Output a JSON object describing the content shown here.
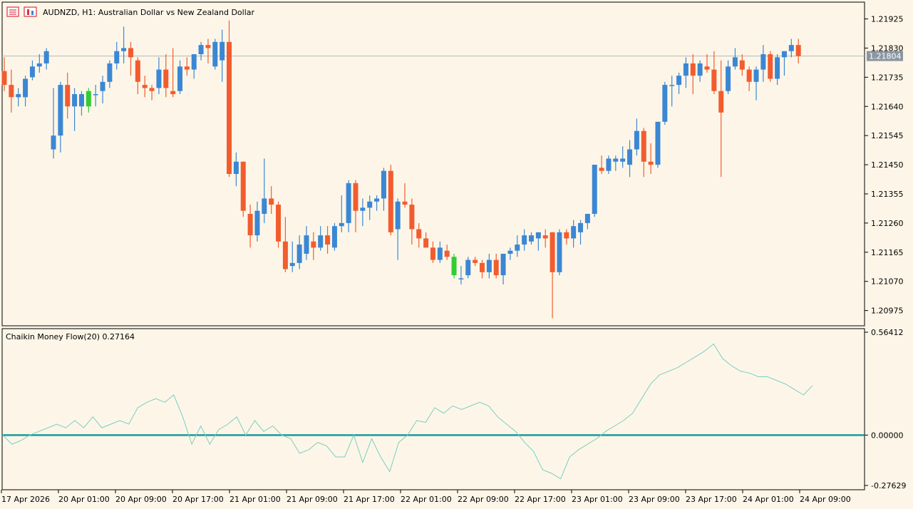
{
  "header": {
    "symbol": "AUDNZD",
    "timeframe": "H1",
    "description": "Australian Dollar vs New Zealand Dollar",
    "title": "AUDNZD, H1:  Australian Dollar vs New Zealand Dollar",
    "icon_left": "list-icon",
    "icon_right": "chart-icon"
  },
  "colors": {
    "background": "#fdf6e8",
    "bull": "#3b87d4",
    "bear": "#f25c2e",
    "doji": "#33cc33",
    "indicator_line": "#78cfc1",
    "zero_line": "#1a9a9a",
    "price_tag_bg": "#8a96a1",
    "price_line": "#b4b9be"
  },
  "price_axis": {
    "ticks": [
      "1.21925",
      "1.21830",
      "1.21735",
      "1.21640",
      "1.21545",
      "1.21450",
      "1.21355",
      "1.21260",
      "1.21165",
      "1.21070",
      "1.20975"
    ],
    "current_price": "1.21804",
    "range": [
      1.2093,
      1.21975
    ]
  },
  "indicator": {
    "name": "Chaikin Money Flow(20)",
    "value": "0.27164",
    "title": "Chaikin Money Flow(20) 0.27164",
    "ticks": [
      "0.56412",
      "0.00000",
      "-0.27629"
    ],
    "range": [
      -0.27629,
      0.56412
    ]
  },
  "time_axis": {
    "labels": [
      "17 Apr 2026",
      "20 Apr 01:00",
      "20 Apr 09:00",
      "20 Apr 17:00",
      "21 Apr 01:00",
      "21 Apr 09:00",
      "21 Apr 17:00",
      "22 Apr 01:00",
      "22 Apr 09:00",
      "22 Apr 17:00",
      "23 Apr 01:00",
      "23 Apr 09:00",
      "23 Apr 17:00",
      "24 Apr 01:00",
      "24 Apr 09:00"
    ]
  },
  "chart_data": [
    {
      "type": "candlestick",
      "title": "AUDNZD, H1:  Australian Dollar vs New Zealand Dollar",
      "ylim": [
        1.2093,
        1.21975
      ],
      "candles": [
        [
          1.21755,
          1.218,
          1.2169,
          1.2171
        ],
        [
          1.2171,
          1.2176,
          1.2162,
          1.2167
        ],
        [
          1.2167,
          1.217,
          1.2164,
          1.2168
        ],
        [
          1.2167,
          1.2174,
          1.2164,
          1.2173
        ],
        [
          1.21735,
          1.2179,
          1.21725,
          1.2177
        ],
        [
          1.2177,
          1.2181,
          1.2175,
          1.2178
        ],
        [
          1.2178,
          1.2183,
          1.2176,
          1.2182
        ],
        [
          1.215,
          1.217,
          1.2147,
          1.21545
        ],
        [
          1.21545,
          1.2172,
          1.2149,
          1.2171
        ],
        [
          1.2171,
          1.2175,
          1.216,
          1.2164
        ],
        [
          1.2164,
          1.217,
          1.2156,
          1.2168
        ],
        [
          1.2164,
          1.2169,
          1.2161,
          1.2168
        ],
        [
          1.2164,
          1.217,
          1.2162,
          1.2169
        ],
        [
          1.2168,
          1.2171,
          1.2164,
          1.2168
        ],
        [
          1.2169,
          1.2174,
          1.2165,
          1.2172
        ],
        [
          1.2172,
          1.2179,
          1.217,
          1.2178
        ],
        [
          1.2178,
          1.2185,
          1.2176,
          1.2182
        ],
        [
          1.2182,
          1.219,
          1.2178,
          1.2183
        ],
        [
          1.2183,
          1.2185,
          1.2174,
          1.218
        ],
        [
          1.2179,
          1.218,
          1.2168,
          1.2172
        ],
        [
          1.2171,
          1.2174,
          1.2167,
          1.217
        ],
        [
          1.217,
          1.2171,
          1.2166,
          1.2169
        ],
        [
          1.217,
          1.218,
          1.2168,
          1.2176
        ],
        [
          1.2176,
          1.2181,
          1.2167,
          1.217
        ],
        [
          1.2169,
          1.2183,
          1.2167,
          1.2168
        ],
        [
          1.2169,
          1.2179,
          1.2168,
          1.2177
        ],
        [
          1.2177,
          1.218,
          1.2174,
          1.2176
        ],
        [
          1.2176,
          1.218,
          1.2173,
          1.2181
        ],
        [
          1.2181,
          1.2185,
          1.2179,
          1.2184
        ],
        [
          1.2184,
          1.2186,
          1.2178,
          1.2183
        ],
        [
          1.2177,
          1.2186,
          1.2176,
          1.2185
        ],
        [
          1.2179,
          1.2189,
          1.2172,
          1.2185
        ],
        [
          1.2185,
          1.2192,
          1.2141,
          1.2142
        ],
        [
          1.2142,
          1.2149,
          1.2138,
          1.2146
        ],
        [
          1.2146,
          1.2146,
          1.2128,
          1.213
        ],
        [
          1.2129,
          1.2132,
          1.2118,
          1.2122
        ],
        [
          1.2122,
          1.2133,
          1.212,
          1.213
        ],
        [
          1.2129,
          1.2147,
          1.2126,
          1.2134
        ],
        [
          1.2134,
          1.2138,
          1.2129,
          1.2132
        ],
        [
          1.2132,
          1.2133,
          1.2118,
          1.212
        ],
        [
          1.212,
          1.2128,
          1.211,
          1.2111
        ],
        [
          1.2112,
          1.212,
          1.211,
          1.2113
        ],
        [
          1.2113,
          1.2122,
          1.2111,
          1.2119
        ],
        [
          1.2116,
          1.2125,
          1.2114,
          1.2122
        ],
        [
          1.212,
          1.2123,
          1.2114,
          1.2118
        ],
        [
          1.2118,
          1.2125,
          1.2117,
          1.2122
        ],
        [
          1.2122,
          1.2125,
          1.2116,
          1.2119
        ],
        [
          1.2118,
          1.2126,
          1.2117,
          1.2125
        ],
        [
          1.2125,
          1.2135,
          1.2123,
          1.2126
        ],
        [
          1.2126,
          1.214,
          1.2123,
          1.2139
        ],
        [
          1.2139,
          1.214,
          1.2123,
          1.213
        ],
        [
          1.213,
          1.2134,
          1.2125,
          1.2131
        ],
        [
          1.2131,
          1.2135,
          1.2127,
          1.2133
        ],
        [
          1.2133,
          1.2135,
          1.213,
          1.2134
        ],
        [
          1.2134,
          1.2144,
          1.213,
          1.2143
        ],
        [
          1.2143,
          1.2145,
          1.2122,
          1.2123
        ],
        [
          1.2124,
          1.2134,
          1.2114,
          1.2133
        ],
        [
          1.2133,
          1.2139,
          1.2131,
          1.2132
        ],
        [
          1.2132,
          1.2134,
          1.2119,
          1.2124
        ],
        [
          1.2124,
          1.2126,
          1.2118,
          1.2121
        ],
        [
          1.2121,
          1.2123,
          1.2118,
          1.2118
        ],
        [
          1.2118,
          1.212,
          1.2113,
          1.2114
        ],
        [
          1.2114,
          1.212,
          1.2113,
          1.2118
        ],
        [
          1.2117,
          1.2119,
          1.2114,
          1.2115
        ],
        [
          1.2115,
          1.2116,
          1.2108,
          1.2109
        ],
        [
          1.2108,
          1.2112,
          1.2106,
          1.2108
        ],
        [
          1.2109,
          1.2115,
          1.2108,
          1.2114
        ],
        [
          1.2114,
          1.2115,
          1.2112,
          1.2113
        ],
        [
          1.2113,
          1.2114,
          1.2108,
          1.211
        ],
        [
          1.211,
          1.2116,
          1.2108,
          1.2114
        ],
        [
          1.2114,
          1.2116,
          1.2108,
          1.2109
        ],
        [
          1.2109,
          1.2116,
          1.2106,
          1.2116
        ],
        [
          1.2116,
          1.2118,
          1.2114,
          1.2117
        ],
        [
          1.2117,
          1.2122,
          1.2115,
          1.2119
        ],
        [
          1.2119,
          1.2124,
          1.2117,
          1.2122
        ],
        [
          1.212,
          1.2123,
          1.2119,
          1.2122
        ],
        [
          1.2121,
          1.2123,
          1.2117,
          1.2123
        ],
        [
          1.2122,
          1.2124,
          1.2118,
          1.2121
        ],
        [
          1.2123,
          1.2123,
          1.2095,
          1.211
        ],
        [
          1.211,
          1.2124,
          1.2109,
          1.2123
        ],
        [
          1.2123,
          1.2124,
          1.2119,
          1.2121
        ],
        [
          1.2121,
          1.2127,
          1.2118,
          1.2125
        ],
        [
          1.2123,
          1.2127,
          1.2119,
          1.2126
        ],
        [
          1.2126,
          1.2128,
          1.2124,
          1.2129
        ],
        [
          1.2129,
          1.2144,
          1.2128,
          1.2145
        ],
        [
          1.2144,
          1.2148,
          1.2142,
          1.2143
        ],
        [
          1.2143,
          1.2148,
          1.2142,
          1.2147
        ],
        [
          1.2146,
          1.2148,
          1.2143,
          1.2147
        ],
        [
          1.2146,
          1.2151,
          1.2144,
          1.2147
        ],
        [
          1.2145,
          1.2153,
          1.2141,
          1.215
        ],
        [
          1.215,
          1.216,
          1.2148,
          1.2156
        ],
        [
          1.2156,
          1.2157,
          1.2141,
          1.2146
        ],
        [
          1.2146,
          1.2152,
          1.2142,
          1.2145
        ],
        [
          1.2145,
          1.2158,
          1.2144,
          1.2159
        ],
        [
          1.2159,
          1.2172,
          1.2158,
          1.2171
        ],
        [
          1.2171,
          1.2174,
          1.2164,
          1.2171
        ],
        [
          1.2171,
          1.2175,
          1.2168,
          1.2174
        ],
        [
          1.2174,
          1.218,
          1.217,
          1.2178
        ],
        [
          1.2178,
          1.2181,
          1.2168,
          1.2174
        ],
        [
          1.2174,
          1.2179,
          1.2172,
          1.2178
        ],
        [
          1.2177,
          1.2181,
          1.2175,
          1.2176
        ],
        [
          1.2176,
          1.2182,
          1.2168,
          1.2169
        ],
        [
          1.2169,
          1.2179,
          1.2141,
          1.2162
        ],
        [
          1.2169,
          1.2179,
          1.2168,
          1.2177
        ],
        [
          1.2177,
          1.2183,
          1.2176,
          1.218
        ],
        [
          1.2179,
          1.2181,
          1.2174,
          1.2176
        ],
        [
          1.2176,
          1.2177,
          1.2169,
          1.2172
        ],
        [
          1.2172,
          1.2177,
          1.2166,
          1.2176
        ],
        [
          1.2176,
          1.2184,
          1.2172,
          1.2181
        ],
        [
          1.2181,
          1.2182,
          1.2172,
          1.2173
        ],
        [
          1.2173,
          1.2181,
          1.2171,
          1.218
        ],
        [
          1.218,
          1.2181,
          1.2174,
          1.2182
        ],
        [
          1.2182,
          1.2186,
          1.218,
          1.2184
        ],
        [
          1.2184,
          1.2186,
          1.2178,
          1.21804
        ]
      ],
      "doji_indices": [
        12,
        64
      ]
    },
    {
      "type": "line",
      "title": "Chaikin Money Flow(20) 0.27164",
      "ylim": [
        -0.27629,
        0.56412
      ],
      "zero_line": 0.0,
      "values": [
        0.0,
        -0.05,
        -0.03,
        0.0,
        0.02,
        0.04,
        0.06,
        0.04,
        0.08,
        0.04,
        0.1,
        0.04,
        0.06,
        0.08,
        0.06,
        0.15,
        0.18,
        0.2,
        0.18,
        0.22,
        0.1,
        -0.05,
        0.05,
        -0.05,
        0.03,
        0.06,
        0.1,
        0.0,
        0.08,
        0.02,
        0.05,
        0.0,
        -0.02,
        -0.1,
        -0.08,
        -0.04,
        -0.06,
        -0.12,
        -0.12,
        0.0,
        -0.15,
        -0.02,
        -0.12,
        -0.2,
        -0.04,
        0.0,
        0.08,
        0.07,
        0.15,
        0.12,
        0.16,
        0.14,
        0.16,
        0.18,
        0.16,
        0.1,
        0.06,
        0.02,
        -0.04,
        -0.09,
        -0.19,
        -0.21,
        -0.24,
        -0.12,
        -0.08,
        -0.05,
        -0.02,
        0.02,
        0.05,
        0.08,
        0.12,
        0.2,
        0.28,
        0.33,
        0.35,
        0.37,
        0.4,
        0.43,
        0.46,
        0.5,
        0.42,
        0.38,
        0.35,
        0.34,
        0.32,
        0.32,
        0.3,
        0.28,
        0.25,
        0.22,
        0.27164
      ]
    }
  ]
}
